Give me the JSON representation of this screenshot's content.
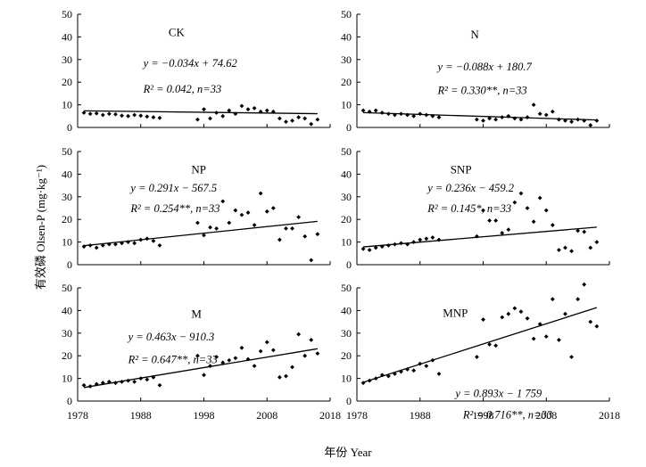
{
  "figure": {
    "ylabel": "有效磷 Olsen-P (mg·kg⁻¹)",
    "xlabel": "年份 Year",
    "x_ticks": [
      "1978",
      "1988",
      "1998",
      "2008",
      "2018"
    ]
  },
  "chart_data": [
    {
      "type": "scatter",
      "panel": "CK",
      "title": "CK",
      "equation": "y = −0.034x + 74.62",
      "stats": "R² = 0.042, n=33",
      "xlim": [
        1978,
        2018
      ],
      "ylim": [
        0,
        50
      ],
      "yticks": [
        0,
        10,
        20,
        30,
        40,
        50
      ],
      "fit": {
        "slope": -0.034,
        "intercept": 74.62,
        "x_range": [
          1979,
          2016
        ]
      },
      "points": {
        "x": [
          1979,
          1980,
          1981,
          1982,
          1983,
          1984,
          1985,
          1986,
          1987,
          1988,
          1989,
          1990,
          1991,
          1997,
          1998,
          1999,
          2000,
          2001,
          2002,
          2003,
          2004,
          2005,
          2006,
          2007,
          2008,
          2009,
          2010,
          2011,
          2012,
          2013,
          2014,
          2015,
          2016
        ],
        "y": [
          6.5,
          6.0,
          6.2,
          5.5,
          6.0,
          5.8,
          5.2,
          5.0,
          5.5,
          5.2,
          4.8,
          4.5,
          4.2,
          3.5,
          8.0,
          4.0,
          6.5,
          5.0,
          7.5,
          6.0,
          9.5,
          8.0,
          8.5,
          7.0,
          7.5,
          7.0,
          4.0,
          2.5,
          3.0,
          4.5,
          4.0,
          1.5,
          3.5
        ]
      }
    },
    {
      "type": "scatter",
      "panel": "N",
      "title": "N",
      "equation": "y = −0.088x + 180.7",
      "stats": "R² = 0.330**, n=33",
      "xlim": [
        1978,
        2018
      ],
      "ylim": [
        0,
        50
      ],
      "yticks": [
        0,
        10,
        20,
        30,
        40,
        50
      ],
      "fit": {
        "slope": -0.088,
        "intercept": 180.7,
        "x_range": [
          1979,
          2016
        ]
      },
      "points": {
        "x": [
          1979,
          1980,
          1981,
          1982,
          1983,
          1984,
          1985,
          1986,
          1987,
          1988,
          1989,
          1990,
          1991,
          1997,
          1998,
          1999,
          2000,
          2001,
          2002,
          2003,
          2004,
          2005,
          2006,
          2007,
          2008,
          2009,
          2010,
          2011,
          2012,
          2013,
          2014,
          2015,
          2016
        ],
        "y": [
          7.5,
          7.0,
          7.5,
          6.5,
          6.0,
          5.5,
          6.0,
          5.5,
          5.0,
          6.0,
          5.5,
          5.0,
          4.5,
          3.5,
          3.0,
          4.0,
          3.5,
          4.5,
          5.0,
          4.0,
          3.5,
          4.5,
          10.0,
          6.0,
          5.5,
          7.0,
          3.5,
          3.0,
          2.5,
          3.5,
          3.0,
          1.0,
          3.0
        ]
      }
    },
    {
      "type": "scatter",
      "panel": "NP",
      "title": "NP",
      "equation": "y = 0.291x − 567.5",
      "stats": "R² = 0.254**, n=33",
      "xlim": [
        1978,
        2018
      ],
      "ylim": [
        0,
        50
      ],
      "yticks": [
        0,
        10,
        20,
        30,
        40,
        50
      ],
      "fit": {
        "slope": 0.291,
        "intercept": -567.5,
        "x_range": [
          1979,
          2016
        ]
      },
      "points": {
        "x": [
          1979,
          1980,
          1981,
          1982,
          1983,
          1984,
          1985,
          1986,
          1987,
          1988,
          1989,
          1990,
          1991,
          1997,
          1998,
          1999,
          2000,
          2001,
          2002,
          2003,
          2004,
          2005,
          2006,
          2007,
          2008,
          2009,
          2010,
          2011,
          2012,
          2013,
          2014,
          2015,
          2016
        ],
        "y": [
          8.0,
          8.5,
          7.5,
          8.5,
          9.0,
          9.0,
          9.5,
          10.0,
          9.5,
          11.0,
          11.5,
          10.5,
          8.5,
          18.5,
          13.0,
          16.5,
          16.0,
          28.0,
          18.5,
          24.0,
          22.0,
          23.0,
          17.5,
          31.5,
          23.5,
          25.0,
          11.0,
          16.0,
          16.0,
          21.0,
          12.5,
          2.0,
          13.5
        ]
      }
    },
    {
      "type": "scatter",
      "panel": "SNP",
      "title": "SNP",
      "equation": "y = 0.236x − 459.2",
      "stats": "R² = 0.145*, n=33",
      "xlim": [
        1978,
        2018
      ],
      "ylim": [
        0,
        50
      ],
      "yticks": [
        0,
        10,
        20,
        30,
        40,
        50
      ],
      "fit": {
        "slope": 0.236,
        "intercept": -459.2,
        "x_range": [
          1979,
          2016
        ]
      },
      "points": {
        "x": [
          1979,
          1980,
          1981,
          1982,
          1983,
          1984,
          1985,
          1986,
          1987,
          1988,
          1989,
          1990,
          1991,
          1997,
          1998,
          1999,
          2000,
          2001,
          2002,
          2003,
          2004,
          2005,
          2006,
          2007,
          2008,
          2009,
          2010,
          2011,
          2012,
          2013,
          2014,
          2015,
          2016
        ],
        "y": [
          7.0,
          6.5,
          7.5,
          8.0,
          8.5,
          9.0,
          9.5,
          9.0,
          10.0,
          11.0,
          11.5,
          12.0,
          11.0,
          12.5,
          24.0,
          19.5,
          19.5,
          14.0,
          15.5,
          27.5,
          31.5,
          25.0,
          19.0,
          29.5,
          24.0,
          17.5,
          6.5,
          7.5,
          6.0,
          15.0,
          14.5,
          7.5,
          10.0
        ]
      }
    },
    {
      "type": "scatter",
      "panel": "M",
      "title": "M",
      "equation": "y = 0.463x − 910.3",
      "stats": "R² = 0.647**, n=33",
      "xlim": [
        1978,
        2018
      ],
      "ylim": [
        0,
        50
      ],
      "yticks": [
        0,
        10,
        20,
        30,
        40,
        50
      ],
      "fit": {
        "slope": 0.463,
        "intercept": -910.3,
        "x_range": [
          1979,
          2016
        ]
      },
      "points": {
        "x": [
          1979,
          1980,
          1981,
          1982,
          1983,
          1984,
          1985,
          1986,
          1987,
          1988,
          1989,
          1990,
          1991,
          1997,
          1998,
          1999,
          2000,
          2001,
          2002,
          2003,
          2004,
          2005,
          2006,
          2007,
          2008,
          2009,
          2010,
          2011,
          2012,
          2013,
          2014,
          2015,
          2016
        ],
        "y": [
          7.0,
          6.5,
          7.5,
          8.0,
          8.5,
          8.0,
          8.5,
          9.0,
          8.5,
          10.0,
          9.5,
          10.5,
          7.0,
          20.0,
          11.5,
          15.5,
          19.5,
          17.0,
          18.0,
          19.0,
          23.5,
          18.5,
          15.5,
          22.0,
          26.0,
          22.5,
          10.5,
          11.0,
          15.0,
          29.5,
          20.0,
          27.0,
          21.0
        ]
      }
    },
    {
      "type": "scatter",
      "panel": "MNP",
      "title": "MNP",
      "equation": "y = 0.893x − 1 759",
      "stats": "R² = 0.716**, n=33",
      "xlim": [
        1978,
        2018
      ],
      "ylim": [
        0,
        50
      ],
      "yticks": [
        0,
        10,
        20,
        30,
        40,
        50
      ],
      "fit": {
        "slope": 0.893,
        "intercept": -1759,
        "x_range": [
          1979,
          2016
        ]
      },
      "points": {
        "x": [
          1979,
          1980,
          1981,
          1982,
          1983,
          1984,
          1985,
          1986,
          1987,
          1988,
          1989,
          1990,
          1991,
          1997,
          1998,
          1999,
          2000,
          2001,
          2002,
          2003,
          2004,
          2005,
          2006,
          2007,
          2008,
          2009,
          2010,
          2011,
          2012,
          2013,
          2014,
          2015,
          2016
        ],
        "y": [
          8.0,
          9.0,
          10.0,
          11.5,
          11.0,
          12.0,
          13.0,
          14.0,
          13.5,
          16.5,
          15.5,
          18.0,
          12.0,
          19.5,
          36.0,
          25.0,
          24.5,
          37.0,
          38.5,
          41.0,
          39.5,
          36.5,
          27.5,
          34.0,
          28.5,
          45.0,
          27.0,
          38.5,
          19.5,
          45.0,
          51.5,
          35.0,
          33.0
        ]
      }
    }
  ]
}
